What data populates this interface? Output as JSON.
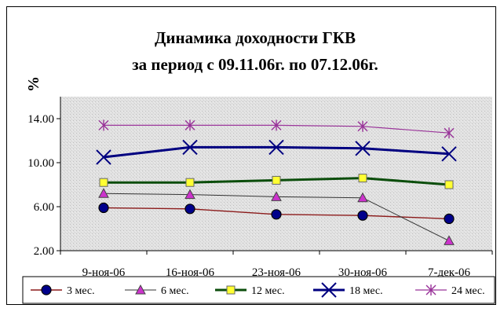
{
  "chart_data": {
    "type": "line",
    "title": "Динамика доходности ГКВ",
    "subtitle": "за период с 09.11.06г. по 07.12.06г.",
    "ylabel": "%",
    "xlabel": "",
    "ylim": [
      2.0,
      16.0
    ],
    "yticks": [
      "2.00",
      "6.00",
      "10.00",
      "14.00"
    ],
    "ytick_values": [
      2,
      6,
      10,
      14
    ],
    "grid": false,
    "legend_position": "bottom",
    "categories": [
      "9-ноя-06",
      "16-ноя-06",
      "23-ноя-06",
      "30-ноя-06",
      "7-дек-06"
    ],
    "series": [
      {
        "name": "3 мес.",
        "values": [
          5.9,
          5.8,
          5.3,
          5.2,
          4.9
        ],
        "color": "#8B1A1A",
        "marker": "circle",
        "marker_fill": "#00008B"
      },
      {
        "name": "6 мес.",
        "values": [
          7.2,
          7.1,
          6.9,
          6.8,
          2.9
        ],
        "color": "#333333",
        "marker": "triangle",
        "marker_fill": "#CC33CC"
      },
      {
        "name": "12 мес.",
        "values": [
          8.2,
          8.2,
          8.4,
          8.6,
          8.0
        ],
        "color": "#0B4D0B",
        "marker": "square",
        "marker_fill": "#FFFF33"
      },
      {
        "name": "18 мес.",
        "values": [
          10.5,
          11.4,
          11.4,
          11.3,
          10.8
        ],
        "color": "#000080",
        "marker": "x",
        "marker_fill": "#000080"
      },
      {
        "name": "24 мес.",
        "values": [
          13.4,
          13.4,
          13.4,
          13.3,
          12.7
        ],
        "color": "#993399",
        "marker": "star",
        "marker_fill": "#993399"
      }
    ]
  }
}
